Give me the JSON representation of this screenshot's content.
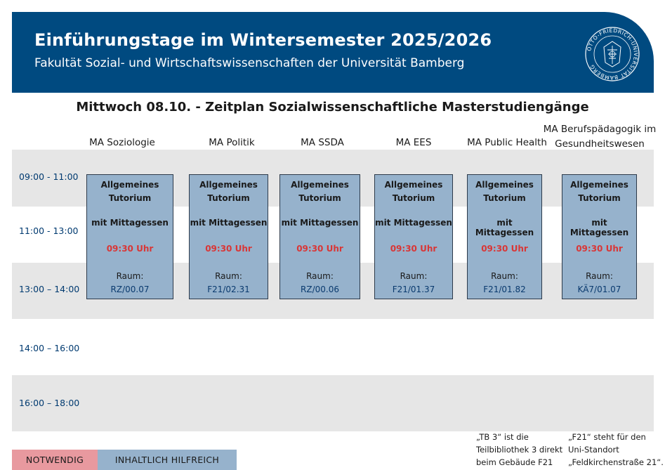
{
  "header": {
    "title": "Einführungstage im Wintersemester 2025/2026",
    "subtitle": "Fakultät Sozial- und Wirtschaftswissenschaften der Universität Bamberg",
    "seal_text": "OTTO-FRIEDRICH-UNIVERSITÄT BAMBERG"
  },
  "page_title": "Mittwoch 08.10. - Zeitplan Sozialwissenschaftliche Masterstudiengänge",
  "columns": [
    {
      "label": "MA  Soziologie",
      "event": {
        "line1": "Allgemeines",
        "line2": "Tutorium",
        "line3": "mit Mittagessen",
        "time": "09:30 Uhr",
        "room_label": "Raum:",
        "room": "RZ/00.07"
      }
    },
    {
      "label": "MA Politik",
      "event": {
        "line1": "Allgemeines",
        "line2": "Tutorium",
        "line3": "mit Mittagessen",
        "time": "09:30 Uhr",
        "room_label": "Raum:",
        "room": "F21/02.31"
      }
    },
    {
      "label": "MA SSDA",
      "event": {
        "line1": "Allgemeines",
        "line2": "Tutorium",
        "line3": "mit Mittagessen",
        "time": "09:30 Uhr",
        "room_label": "Raum:",
        "room": "RZ/00.06"
      }
    },
    {
      "label": "MA EES",
      "event": {
        "line1": "Allgemeines",
        "line2": "Tutorium",
        "line3": "mit Mittagessen",
        "time": "09:30 Uhr",
        "room_label": "Raum:",
        "room": "F21/01.37"
      }
    },
    {
      "label": "MA Public Health",
      "event": {
        "line1": "Allgemeines",
        "line2": "Tutorium",
        "line3": "mit Mittagessen",
        "time": "09:30 Uhr",
        "room_label": "Raum:",
        "room": "F21/01.82"
      }
    },
    {
      "label_line1": "MA Berufspädagogik im",
      "label_line2": "Gesundheitswesen",
      "event": {
        "line1": "Allgemeines",
        "line2": "Tutorium",
        "line3": "mit Mittagessen",
        "time": "09:30 Uhr",
        "room_label": "Raum:",
        "room": "KÄ7/01.07"
      }
    }
  ],
  "time_slots": [
    "09:00 - 11:00",
    "11:00 - 13:00",
    "13:00 – 14:00",
    "14:00 – 16:00",
    "16:00 – 18:00"
  ],
  "legend": {
    "required": "NOTWENDIG",
    "helpful": "INHALTLICH HILFREICH",
    "required_color": "#e8999f",
    "helpful_color": "#96b2cc"
  },
  "notes": {
    "tb3": [
      "„TB 3“ ist die",
      "Teilbibliothek 3 direkt",
      "beim Gebäude F21"
    ],
    "f21": [
      "„F21“ steht für den",
      "Uni-Standort",
      "„Feldkirchenstraße 21“."
    ]
  },
  "colors": {
    "header_bg": "#004a80",
    "block_bg": "#96b2cc",
    "time_highlight": "#d93636",
    "band_bg": "#e6e6e6"
  }
}
